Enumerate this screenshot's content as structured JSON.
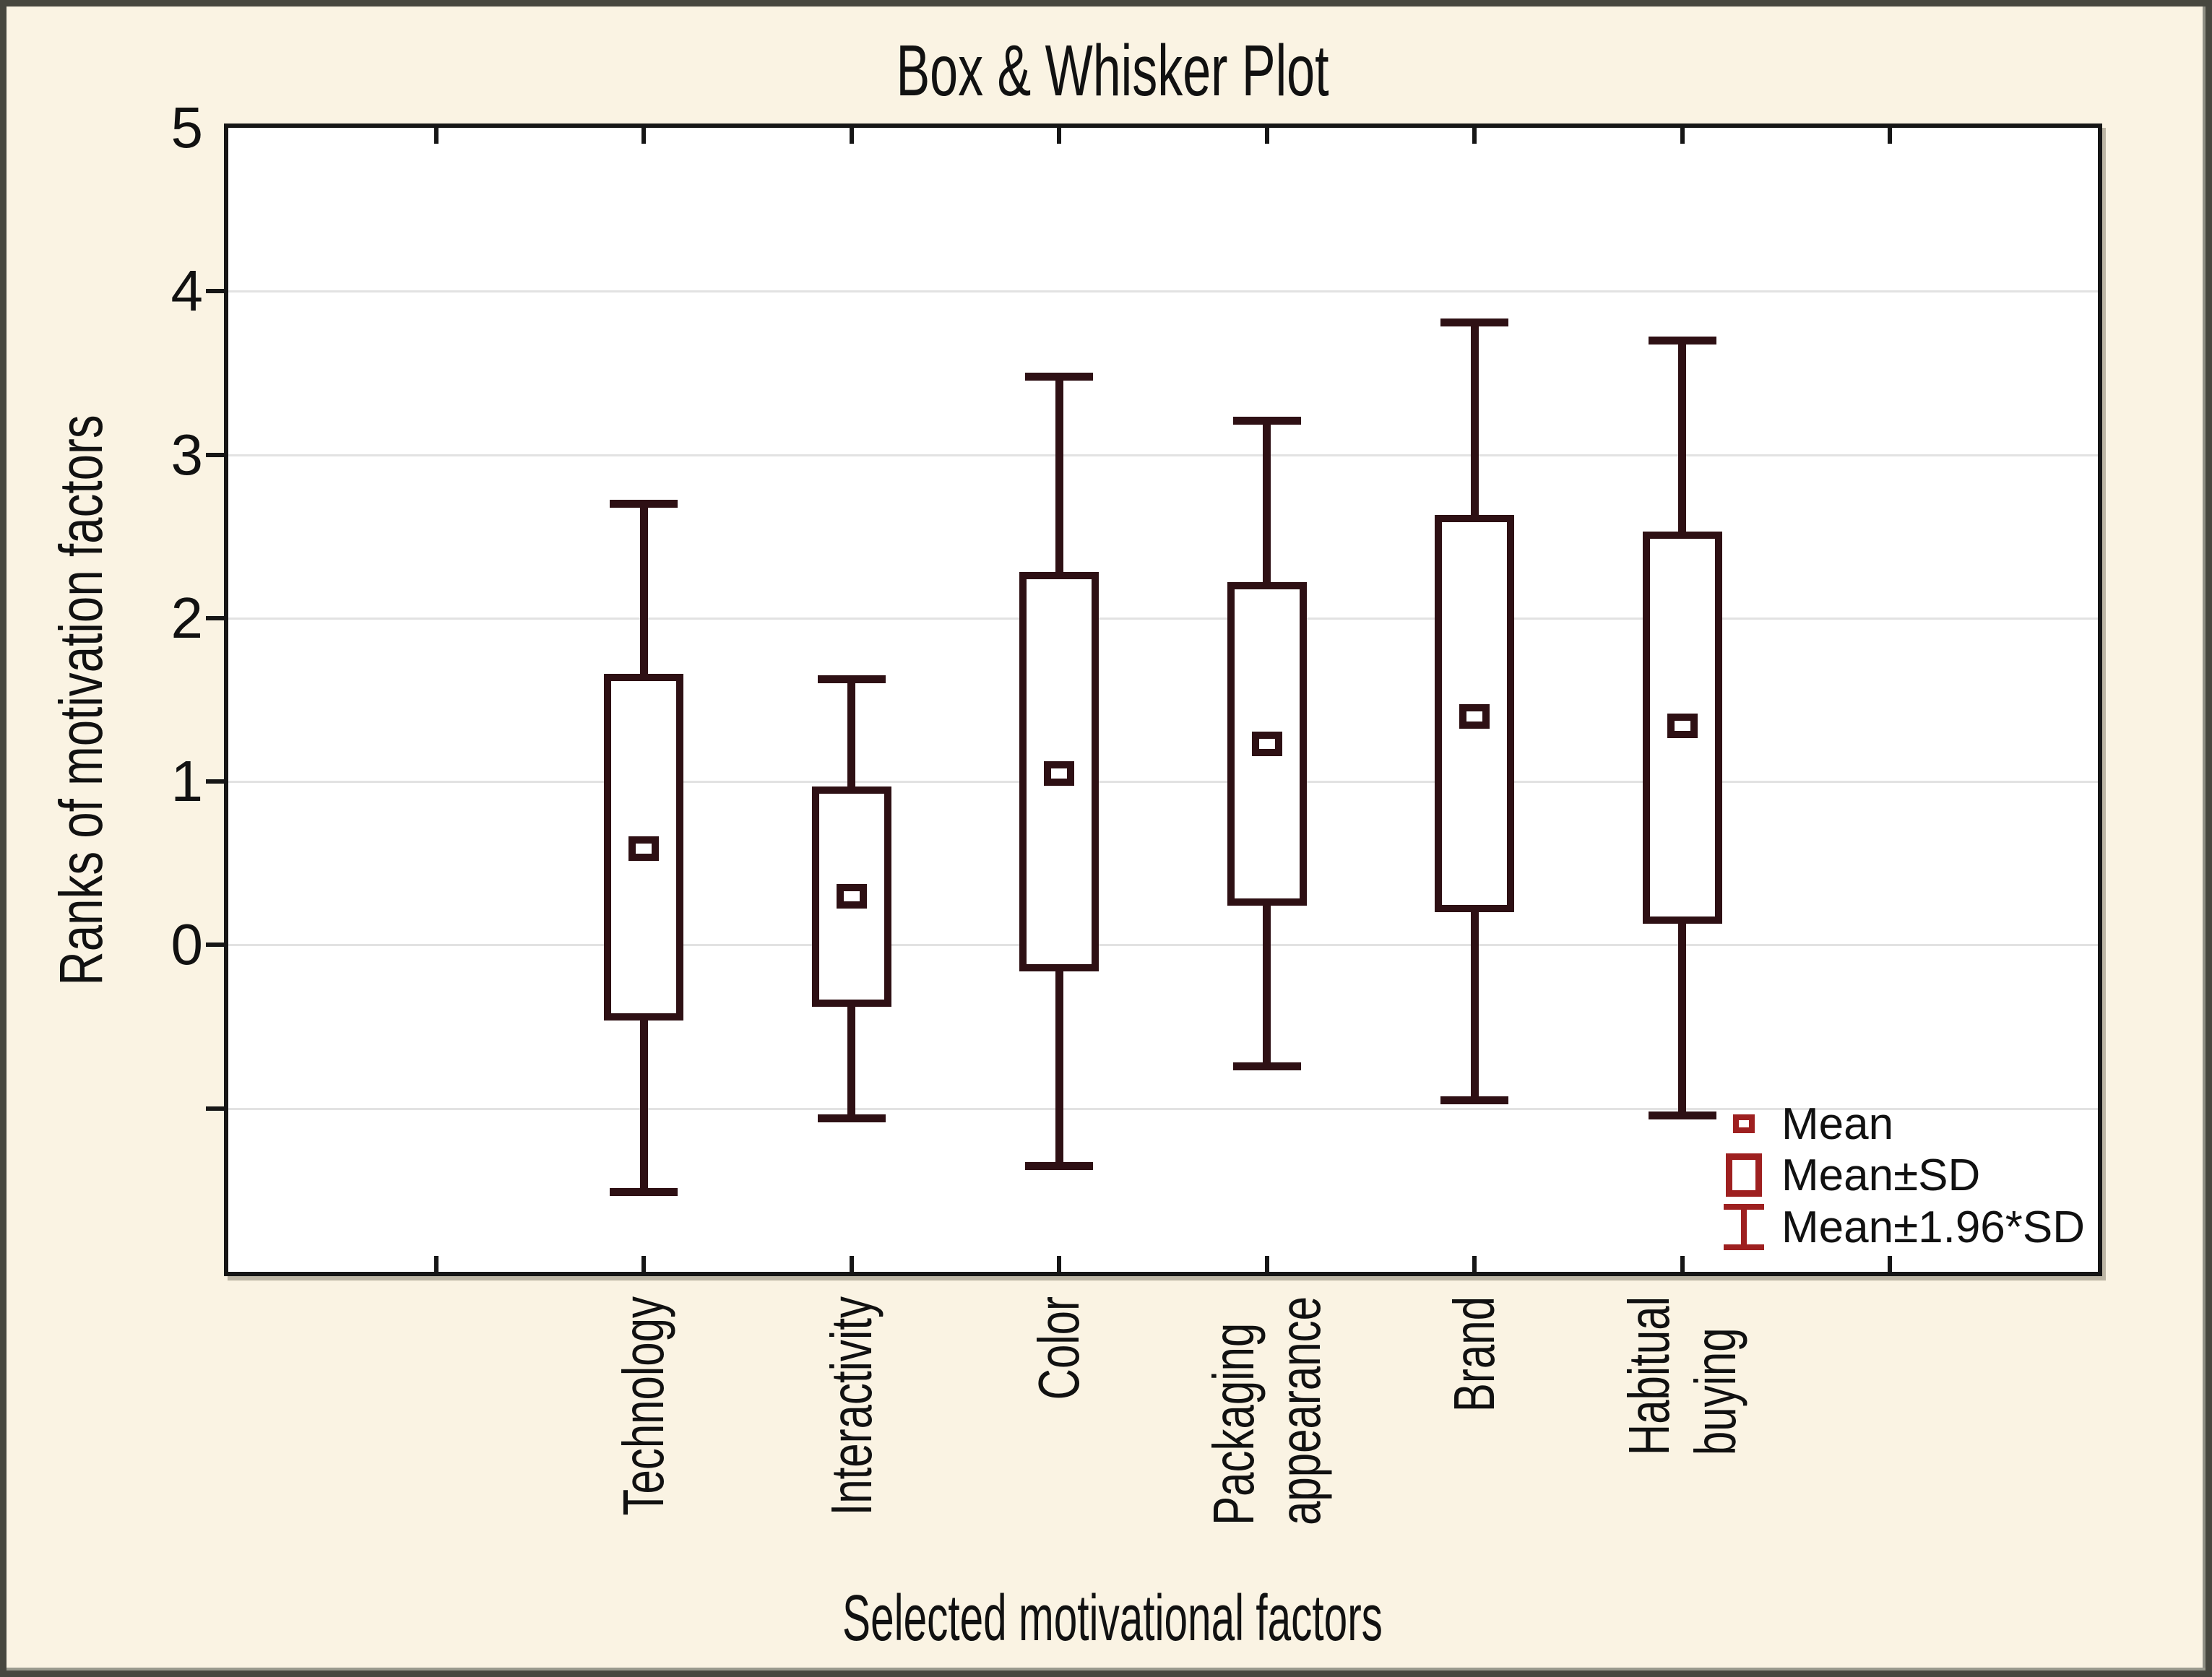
{
  "title": "Box & Whisker Plot",
  "y_axis": {
    "label": "Ranks of motivation factors",
    "max": 5,
    "min": -2,
    "tick_values": [
      5,
      4,
      3,
      2,
      1,
      0
    ],
    "gridline_values": [
      4,
      3,
      2,
      1,
      0,
      -1
    ]
  },
  "x_axis": {
    "label": "Selected motivational factors",
    "slots": 9,
    "category_start_slot": 2
  },
  "legend": {
    "items": [
      {
        "symbol": "mean-marker",
        "label": "Mean"
      },
      {
        "symbol": "sd-box",
        "label": "Mean±SD"
      },
      {
        "symbol": "whisker",
        "label": "Mean±1.96*SD"
      }
    ]
  },
  "colors": {
    "background": "#FAF3E3",
    "plot_background": "#FFFFFF",
    "frame": "#161616",
    "grid": "#E2E2E2",
    "series": "#2E1014",
    "legend_symbol": "#9E2020",
    "text": "#111111",
    "outer_border": "#47473F"
  },
  "chart_data": {
    "type": "box",
    "title": "Box & Whisker Plot",
    "xlabel": "Selected motivational factors",
    "ylabel": "Ranks of motivation factors",
    "ylim": [
      -2,
      5
    ],
    "grid": "horizontal",
    "legend_position": "bottom-right-inside",
    "whisker_definition": {
      "center": "Mean",
      "box": "Mean±SD",
      "whisker": "Mean±1.96*SD"
    },
    "categories": [
      {
        "label": "Technology",
        "axis_lines": [
          "Technology"
        ],
        "mean": 0.59,
        "box_low": -0.46,
        "box_high": 1.66,
        "whisker_low": -1.51,
        "whisker_high": 2.7
      },
      {
        "label": "Interactivity",
        "axis_lines": [
          "Interactivity"
        ],
        "mean": 0.3,
        "box_low": -0.38,
        "box_high": 0.97,
        "whisker_low": -1.06,
        "whisker_high": 1.63
      },
      {
        "label": "Color",
        "axis_lines": [
          "Color"
        ],
        "mean": 1.05,
        "box_low": -0.16,
        "box_high": 2.28,
        "whisker_low": -1.35,
        "whisker_high": 3.48
      },
      {
        "label": "Packaging appearance",
        "axis_lines": [
          "Packaging",
          "appearance"
        ],
        "mean": 1.23,
        "box_low": 0.24,
        "box_high": 2.22,
        "whisker_low": -0.74,
        "whisker_high": 3.21
      },
      {
        "label": "Brand",
        "axis_lines": [
          "Brand"
        ],
        "mean": 1.4,
        "box_low": 0.2,
        "box_high": 2.63,
        "whisker_low": -0.95,
        "whisker_high": 3.81
      },
      {
        "label": "Habitual buying",
        "axis_lines": [
          "Habitual",
          "buying"
        ],
        "mean": 1.34,
        "box_low": 0.13,
        "box_high": 2.53,
        "whisker_low": -1.04,
        "whisker_high": 3.7
      }
    ]
  }
}
